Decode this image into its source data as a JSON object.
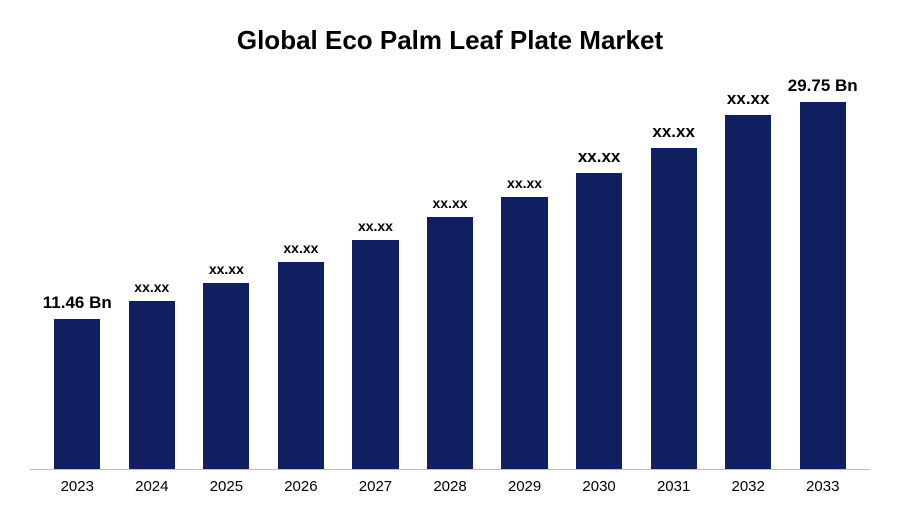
{
  "chart": {
    "type": "bar",
    "title": "Global Eco Palm Leaf Plate Market",
    "title_fontsize": 26,
    "title_color": "#000000",
    "background_color": "#ffffff",
    "axis_line_color": "#bfbfbf",
    "bar_color": "#0f1f5f",
    "bar_width_ratio": 0.62,
    "ylim": [
      0,
      30
    ],
    "x_tick_fontsize": 15,
    "label_fontsize_small": 14,
    "label_fontsize_large": 17,
    "categories": [
      "2023",
      "2024",
      "2025",
      "2026",
      "2027",
      "2028",
      "2029",
      "2030",
      "2031",
      "2032",
      "2033"
    ],
    "values": [
      11.46,
      12.8,
      14.2,
      15.8,
      17.5,
      19.2,
      20.8,
      22.6,
      24.5,
      27.0,
      29.75
    ],
    "value_labels": [
      "11.46 Bn",
      "xx.xx",
      "xx.xx",
      "xx.xx",
      "xx.xx",
      "xx.xx",
      "xx.xx",
      "xx.xx",
      "xx.xx",
      "xx.xx",
      "29.75 Bn"
    ],
    "label_large_flags": [
      true,
      false,
      false,
      false,
      false,
      false,
      false,
      true,
      true,
      true,
      true
    ]
  }
}
